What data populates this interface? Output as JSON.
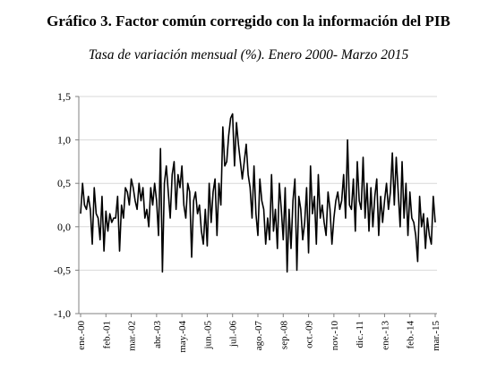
{
  "title": "Gráfico 3. Factor común corregido con la información del PIB",
  "subtitle": "Tasa de variación mensual (%). Enero 2000- Marzo 2015",
  "colors": {
    "line": "#000000",
    "grid": "#d9d9d9",
    "axis": "#808080",
    "background": "#ffffff"
  },
  "chart_data": {
    "type": "line",
    "title": "Gráfico 3. Factor común corregido con la información del PIB",
    "subtitle": "Tasa de variación mensual (%). Enero 2000- Marzo 2015",
    "xlabel": "",
    "ylabel": "",
    "ylim": [
      -1.0,
      1.5
    ],
    "yticks": [
      -1.0,
      -0.5,
      0.0,
      0.5,
      1.0,
      1.5
    ],
    "ytick_labels": [
      "-1,0",
      "-0,5",
      "0,0",
      "0,5",
      "1,0",
      "1,5"
    ],
    "xtick_labels": [
      "ene.-00",
      "feb.-01",
      "mar.-02",
      "abr.-03",
      "may.-04",
      "jun.-05",
      "jul.-06",
      "ago.-07",
      "sep.-08",
      "oct.-09",
      "nov.-10",
      "dic.-11",
      "ene.-13",
      "feb.-14",
      "mar.-15"
    ],
    "grid": true,
    "x_start": "2000-01",
    "x_end": "2015-03",
    "frequency": "monthly",
    "series": [
      {
        "values": [
          0.15,
          0.5,
          0.25,
          0.2,
          0.35,
          0.2,
          -0.2,
          0.45,
          0.15,
          0.1,
          -0.15,
          0.35,
          -0.28,
          0.18,
          -0.05,
          0.15,
          0.05,
          0.1,
          0.1,
          0.35,
          -0.28,
          0.25,
          0.1,
          0.45,
          0.4,
          0.25,
          0.55,
          0.45,
          0.3,
          0.2,
          0.5,
          0.3,
          0.45,
          0.1,
          0.2,
          0.0,
          0.45,
          0.25,
          0.5,
          0.3,
          -0.1,
          0.9,
          -0.52,
          0.5,
          0.7,
          0.4,
          0.1,
          0.6,
          0.75,
          0.2,
          0.6,
          0.45,
          0.7,
          0.25,
          0.1,
          0.5,
          0.4,
          -0.35,
          0.3,
          0.4,
          0.15,
          0.25,
          -0.05,
          -0.2,
          0.2,
          -0.22,
          0.5,
          0.05,
          0.4,
          0.55,
          -0.1,
          0.5,
          0.25,
          1.15,
          0.7,
          0.75,
          1.05,
          1.25,
          1.3,
          0.7,
          1.2,
          0.95,
          0.75,
          0.55,
          0.75,
          0.95,
          0.6,
          0.45,
          0.1,
          0.7,
          0.15,
          -0.1,
          0.55,
          0.3,
          0.2,
          -0.2,
          0.1,
          -0.15,
          0.6,
          -0.05,
          0.2,
          -0.25,
          0.5,
          0.2,
          -0.15,
          0.45,
          -0.52,
          0.2,
          -0.25,
          0.3,
          0.55,
          -0.5,
          0.35,
          0.2,
          -0.15,
          0.05,
          0.45,
          -0.3,
          0.7,
          0.15,
          0.35,
          -0.2,
          0.6,
          0.1,
          0.25,
          0.05,
          -0.1,
          0.4,
          0.2,
          -0.2,
          0.1,
          0.3,
          0.4,
          0.2,
          0.3,
          0.6,
          0.1,
          1.0,
          0.25,
          0.2,
          0.55,
          -0.05,
          0.75,
          0.3,
          0.2,
          0.8,
          0.1,
          0.5,
          -0.05,
          0.45,
          0.0,
          0.35,
          0.55,
          -0.1,
          0.35,
          0.05,
          0.3,
          0.5,
          0.2,
          0.4,
          0.85,
          0.25,
          0.8,
          0.4,
          0.0,
          0.75,
          0.1,
          0.5,
          -0.1,
          0.4,
          0.1,
          0.05,
          -0.1,
          -0.4,
          0.35,
          0.0,
          0.15,
          -0.25,
          0.1,
          -0.1,
          -0.2,
          0.35,
          0.05
        ]
      }
    ]
  }
}
